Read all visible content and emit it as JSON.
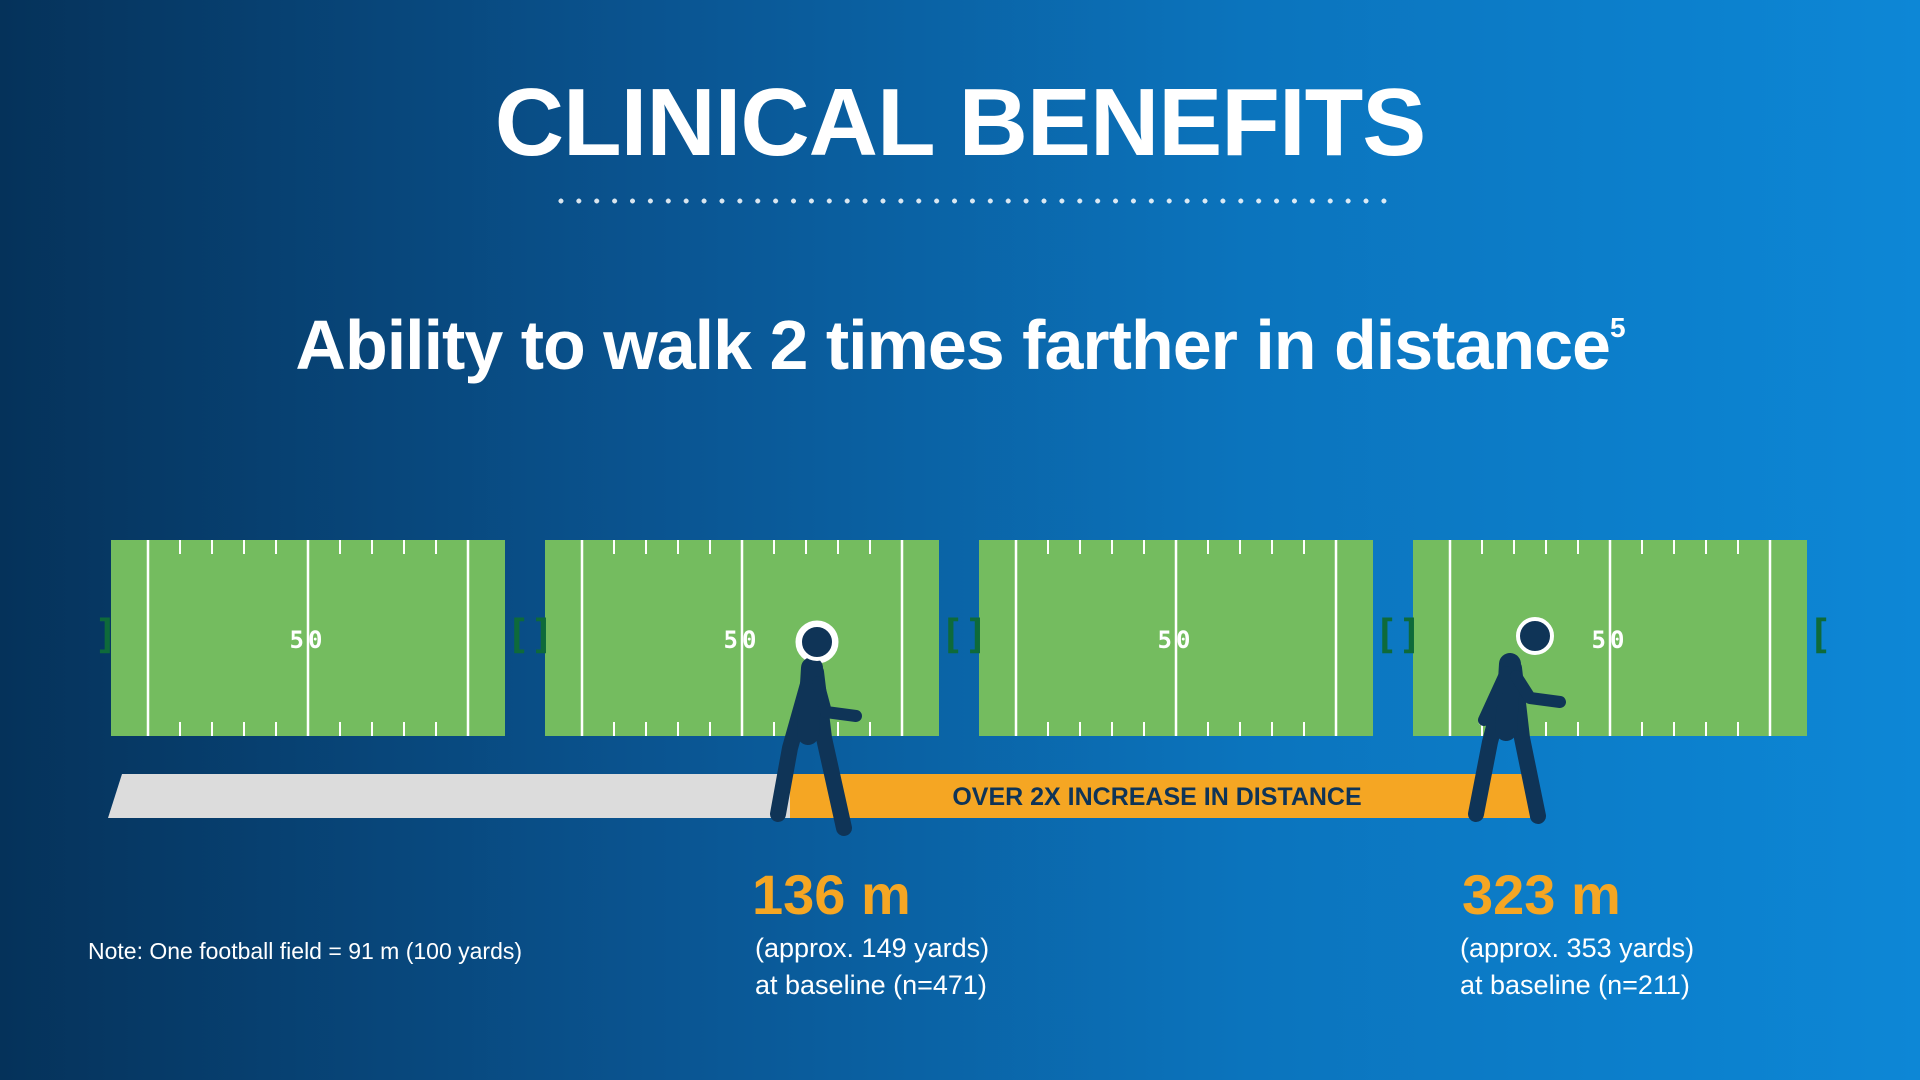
{
  "title": "CLINICAL BENEFITS",
  "subtitle": {
    "text": "Ability to walk 2 times farther in distance",
    "superscript": "5"
  },
  "fields": [
    {
      "yard_label": "50"
    },
    {
      "yard_label": "50"
    },
    {
      "yard_label": "50"
    },
    {
      "yard_label": "50"
    }
  ],
  "increase_banner": "OVER 2X INCREASE IN DISTANCE",
  "baseline": {
    "distance": "136 m",
    "line1": "(approx. 149 yards)",
    "line2": "at baseline (n=471)"
  },
  "result": {
    "distance": "323 m",
    "line1": "(approx. 353 yards)",
    "line2": "at baseline (n=211)"
  },
  "note": "Note: One football field = 91 m (100 yards)",
  "colors": {
    "field_green": "#74bc5f",
    "accent_orange": "#f5a623",
    "track_grey": "#dcdcdc",
    "walker_navy": "#0f3457"
  },
  "icons": [
    "football-field-icon",
    "walking-person-icon"
  ]
}
